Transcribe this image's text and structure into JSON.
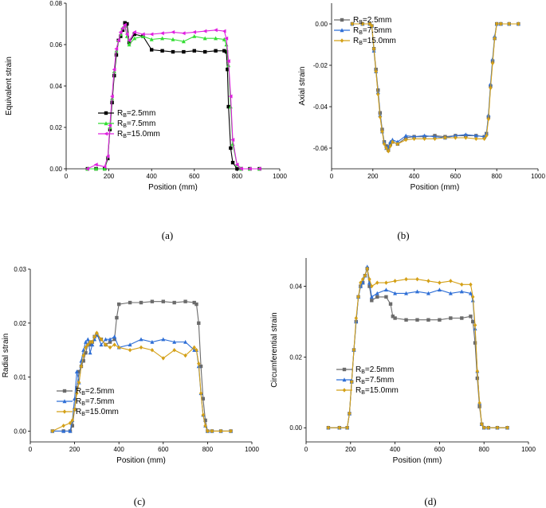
{
  "chart_data": [
    {
      "id": "a",
      "type": "line",
      "caption": "(a)",
      "xlabel": "Position (mm)",
      "ylabel": "Equivalent strain",
      "xlim": [
        0,
        1000
      ],
      "ylim": [
        0,
        0.08
      ],
      "xticks": [
        "0",
        "200",
        "400",
        "600",
        "800",
        "1000"
      ],
      "yticks": [
        "0.00",
        "0.02",
        "0.04",
        "0.06",
        "0.08"
      ],
      "legend_position": "middle-left",
      "series": [
        {
          "name_base": "R",
          "name_sub": "B",
          "name_rest": "=2.5mm",
          "color": "#000000",
          "marker": "square",
          "x": [
            100,
            140,
            180,
            195,
            205,
            215,
            225,
            235,
            245,
            255,
            265,
            275,
            285,
            295,
            320,
            360,
            400,
            450,
            500,
            550,
            600,
            650,
            700,
            740,
            750,
            755,
            760,
            770,
            780,
            800,
            820,
            860,
            905
          ],
          "y": [
            0,
            0,
            0,
            0.005,
            0.019,
            0.032,
            0.045,
            0.055,
            0.062,
            0.064,
            0.067,
            0.0705,
            0.07,
            0.061,
            0.065,
            0.064,
            0.0575,
            0.057,
            0.0565,
            0.0565,
            0.057,
            0.0565,
            0.057,
            0.057,
            0.0565,
            0.048,
            0.03,
            0.01,
            0.003,
            0,
            0,
            0,
            0
          ]
        },
        {
          "name_base": "R",
          "name_sub": "B",
          "name_rest": "=7.5mm",
          "color": "#33dd33",
          "marker": "triangle-up",
          "x": [
            100,
            140,
            180,
            195,
            205,
            215,
            225,
            235,
            245,
            255,
            265,
            275,
            285,
            295,
            320,
            360,
            400,
            450,
            500,
            550,
            600,
            650,
            700,
            740,
            750,
            760,
            770,
            780,
            800,
            820,
            860,
            905
          ],
          "y": [
            0,
            0,
            0,
            0.006,
            0.02,
            0.034,
            0.047,
            0.057,
            0.062,
            0.065,
            0.068,
            0.069,
            0.064,
            0.06,
            0.063,
            0.064,
            0.0625,
            0.063,
            0.0625,
            0.0615,
            0.064,
            0.063,
            0.063,
            0.0625,
            0.06,
            0.05,
            0.03,
            0.012,
            0.002,
            0,
            0,
            0
          ]
        },
        {
          "name_base": "R",
          "name_sub": "B",
          "name_rest": "=15.0mm",
          "color": "#e020e0",
          "marker": "triangle-left",
          "x": [
            100,
            140,
            180,
            195,
            205,
            215,
            225,
            235,
            245,
            255,
            265,
            275,
            285,
            295,
            320,
            360,
            400,
            450,
            500,
            550,
            600,
            650,
            700,
            740,
            750,
            760,
            770,
            780,
            800,
            820,
            860,
            905
          ],
          "y": [
            0,
            0.002,
            0.001,
            0.006,
            0.021,
            0.035,
            0.048,
            0.058,
            0.062,
            0.066,
            0.068,
            0.0695,
            0.065,
            0.062,
            0.066,
            0.065,
            0.065,
            0.0655,
            0.066,
            0.0655,
            0.066,
            0.0665,
            0.067,
            0.0665,
            0.063,
            0.052,
            0.035,
            0.014,
            0.002,
            0,
            0,
            0
          ]
        }
      ]
    },
    {
      "id": "b",
      "type": "line",
      "caption": "(b)",
      "xlabel": "Position (mm)",
      "ylabel": "Axial strain",
      "xlim": [
        0,
        1000
      ],
      "ylim": [
        -0.07,
        0.01
      ],
      "xticks": [
        "0",
        "200",
        "400",
        "600",
        "800",
        "1000"
      ],
      "yticks": [
        "0.00",
        "-0.02",
        "-0.04",
        "-0.06"
      ],
      "legend_position": "top-left",
      "series": [
        {
          "name_base": "R",
          "name_sub": "B",
          "name_rest": "=2.5mm",
          "color": "#6b6b6b",
          "marker": "square",
          "x": [
            100,
            150,
            185,
            195,
            205,
            215,
            225,
            235,
            245,
            255,
            265,
            275,
            285,
            295,
            320,
            360,
            400,
            450,
            500,
            550,
            600,
            650,
            700,
            740,
            750,
            760,
            770,
            780,
            790,
            800,
            820,
            860,
            905
          ],
          "y": [
            0,
            0,
            0,
            -0.001,
            -0.012,
            -0.022,
            -0.032,
            -0.043,
            -0.051,
            -0.057,
            -0.059,
            -0.061,
            -0.058,
            -0.057,
            -0.058,
            -0.055,
            -0.0545,
            -0.0545,
            -0.054,
            -0.0545,
            -0.054,
            -0.054,
            -0.054,
            -0.0545,
            -0.053,
            -0.045,
            -0.03,
            -0.018,
            -0.007,
            0,
            0,
            0,
            0
          ]
        },
        {
          "name_base": "R",
          "name_sub": "B",
          "name_rest": "=7.5mm",
          "color": "#2f6fd6",
          "marker": "triangle-up",
          "x": [
            100,
            150,
            185,
            195,
            205,
            215,
            225,
            235,
            245,
            255,
            265,
            275,
            285,
            295,
            320,
            360,
            400,
            450,
            500,
            550,
            600,
            650,
            700,
            740,
            750,
            760,
            770,
            780,
            790,
            800,
            820,
            860,
            905
          ],
          "y": [
            0,
            0,
            0,
            -0.001,
            -0.013,
            -0.023,
            -0.033,
            -0.044,
            -0.052,
            -0.057,
            -0.06,
            -0.0595,
            -0.057,
            -0.056,
            -0.057,
            -0.054,
            -0.0545,
            -0.054,
            -0.0545,
            -0.055,
            -0.054,
            -0.0535,
            -0.054,
            -0.0545,
            -0.053,
            -0.044,
            -0.029,
            -0.017,
            -0.006,
            0,
            0,
            0,
            0
          ]
        },
        {
          "name_base": "R",
          "name_sub": "B",
          "name_rest": "=15.0mm",
          "color": "#d4a017",
          "marker": "diamond",
          "x": [
            100,
            150,
            185,
            195,
            205,
            215,
            225,
            235,
            245,
            255,
            265,
            275,
            285,
            295,
            320,
            360,
            400,
            450,
            500,
            550,
            600,
            650,
            700,
            740,
            750,
            760,
            770,
            780,
            790,
            800,
            820,
            860,
            905
          ],
          "y": [
            0,
            0,
            0,
            -0.001,
            -0.012,
            -0.023,
            -0.034,
            -0.045,
            -0.052,
            -0.058,
            -0.06,
            -0.0615,
            -0.059,
            -0.057,
            -0.058,
            -0.056,
            -0.0555,
            -0.0555,
            -0.0555,
            -0.055,
            -0.055,
            -0.055,
            -0.0555,
            -0.0555,
            -0.054,
            -0.046,
            -0.031,
            -0.019,
            -0.007,
            0,
            0,
            0,
            0
          ]
        }
      ]
    },
    {
      "id": "c",
      "type": "line",
      "caption": "(c)",
      "xlabel": "Position (mm)",
      "ylabel": "Radial strain",
      "xlim": [
        0,
        1000
      ],
      "ylim": [
        -0.002,
        0.03
      ],
      "xticks": [
        "0",
        "200",
        "400",
        "600",
        "800",
        "1000"
      ],
      "yticks": [
        "0.00",
        "0.01",
        "0.02",
        "0.03"
      ],
      "legend_position": "bottom-left",
      "series": [
        {
          "name_base": "R",
          "name_sub": "B",
          "name_rest": "=2.5mm",
          "color": "#6b6b6b",
          "marker": "square",
          "x": [
            100,
            150,
            180,
            190,
            200,
            210,
            220,
            230,
            240,
            250,
            260,
            270,
            280,
            290,
            300,
            320,
            340,
            360,
            380,
            390,
            400,
            450,
            500,
            550,
            600,
            650,
            700,
            740,
            750,
            760,
            770,
            780,
            790,
            800,
            820,
            860,
            905
          ],
          "y": [
            0,
            0,
            0,
            0.001,
            0.004,
            0.008,
            0.011,
            0.012,
            0.013,
            0.0145,
            0.016,
            0.016,
            0.0165,
            0.0175,
            0.0178,
            0.017,
            0.016,
            0.0165,
            0.017,
            0.021,
            0.0235,
            0.0238,
            0.0238,
            0.024,
            0.024,
            0.0238,
            0.024,
            0.0238,
            0.0235,
            0.02,
            0.012,
            0.006,
            0.002,
            0,
            0,
            0,
            0
          ]
        },
        {
          "name_base": "R",
          "name_sub": "B",
          "name_rest": "=7.5mm",
          "color": "#2f6fd6",
          "marker": "triangle-up",
          "x": [
            100,
            150,
            180,
            190,
            200,
            210,
            220,
            230,
            240,
            250,
            260,
            270,
            280,
            290,
            300,
            320,
            340,
            360,
            380,
            400,
            450,
            500,
            550,
            600,
            650,
            700,
            740,
            750,
            760,
            770,
            780,
            790,
            800,
            820,
            860,
            905
          ],
          "y": [
            0,
            0,
            0,
            0.002,
            0.006,
            0.011,
            0.009,
            0.013,
            0.015,
            0.0165,
            0.017,
            0.0145,
            0.016,
            0.017,
            0.018,
            0.016,
            0.017,
            0.017,
            0.0175,
            0.0155,
            0.016,
            0.017,
            0.0165,
            0.017,
            0.0165,
            0.0165,
            0.015,
            0.015,
            0.012,
            0.007,
            0.003,
            0.001,
            0,
            0,
            0,
            0
          ]
        },
        {
          "name_base": "R",
          "name_sub": "B",
          "name_rest": "=15.0mm",
          "color": "#d4a017",
          "marker": "diamond",
          "x": [
            100,
            150,
            180,
            190,
            200,
            210,
            220,
            230,
            240,
            250,
            260,
            270,
            280,
            290,
            300,
            320,
            340,
            360,
            380,
            400,
            450,
            500,
            550,
            600,
            650,
            700,
            740,
            750,
            760,
            770,
            780,
            790,
            800,
            820,
            860,
            905
          ],
          "y": [
            0,
            0.001,
            0.0015,
            0.002,
            0.004,
            0.007,
            0.009,
            0.012,
            0.014,
            0.0155,
            0.016,
            0.0165,
            0.0165,
            0.0175,
            0.0182,
            0.017,
            0.016,
            0.0155,
            0.016,
            0.0155,
            0.015,
            0.0155,
            0.015,
            0.0135,
            0.015,
            0.014,
            0.0155,
            0.015,
            0.0125,
            0.007,
            0.003,
            0.001,
            0,
            0,
            0,
            0
          ]
        }
      ]
    },
    {
      "id": "d",
      "type": "line",
      "caption": "(d)",
      "xlabel": "Position (mm)",
      "ylabel": "Circumferential strain",
      "xlim": [
        0,
        1000
      ],
      "ylim": [
        -0.004,
        0.048
      ],
      "xticks": [
        "0",
        "200",
        "400",
        "600",
        "800",
        "1000"
      ],
      "yticks": [
        "0.00",
        "0.02",
        "0.04"
      ],
      "legend_position": "bottom-left",
      "series": [
        {
          "name_base": "R",
          "name_sub": "B",
          "name_rest": "=2.5mm",
          "color": "#6b6b6b",
          "marker": "square",
          "x": [
            100,
            150,
            185,
            195,
            205,
            215,
            225,
            235,
            245,
            255,
            265,
            275,
            285,
            295,
            320,
            360,
            380,
            390,
            400,
            450,
            500,
            550,
            600,
            650,
            700,
            740,
            750,
            760,
            770,
            780,
            790,
            800,
            820,
            860,
            905
          ],
          "y": [
            0,
            0,
            0,
            0.004,
            0.013,
            0.022,
            0.03,
            0.037,
            0.04,
            0.041,
            0.043,
            0.045,
            0.04,
            0.036,
            0.037,
            0.037,
            0.035,
            0.0315,
            0.031,
            0.0305,
            0.0305,
            0.0305,
            0.0305,
            0.031,
            0.031,
            0.0315,
            0.03,
            0.024,
            0.014,
            0.006,
            0.001,
            0,
            0,
            0,
            0
          ]
        },
        {
          "name_base": "R",
          "name_sub": "B",
          "name_rest": "=7.5mm",
          "color": "#2f6fd6",
          "marker": "triangle-up",
          "x": [
            100,
            150,
            185,
            195,
            205,
            215,
            225,
            235,
            245,
            255,
            265,
            275,
            285,
            295,
            320,
            360,
            400,
            450,
            500,
            550,
            600,
            650,
            700,
            740,
            750,
            760,
            770,
            780,
            790,
            800,
            820,
            860,
            905
          ],
          "y": [
            0,
            0,
            0,
            0.004,
            0.013,
            0.022,
            0.03,
            0.037,
            0.04,
            0.041,
            0.043,
            0.0455,
            0.041,
            0.037,
            0.038,
            0.039,
            0.038,
            0.038,
            0.0385,
            0.038,
            0.039,
            0.038,
            0.0385,
            0.038,
            0.036,
            0.028,
            0.016,
            0.007,
            0.001,
            0,
            0,
            0,
            0
          ]
        },
        {
          "name_base": "R",
          "name_sub": "B",
          "name_rest": "=15.0mm",
          "color": "#d4a017",
          "marker": "diamond",
          "x": [
            100,
            150,
            185,
            195,
            205,
            215,
            225,
            235,
            245,
            255,
            265,
            275,
            285,
            295,
            320,
            360,
            400,
            450,
            500,
            550,
            600,
            650,
            700,
            740,
            750,
            760,
            770,
            780,
            790,
            800,
            820,
            860,
            905
          ],
          "y": [
            0,
            0,
            0,
            0.004,
            0.013,
            0.022,
            0.031,
            0.037,
            0.041,
            0.042,
            0.043,
            0.045,
            0.042,
            0.04,
            0.041,
            0.041,
            0.0415,
            0.042,
            0.042,
            0.0415,
            0.041,
            0.0415,
            0.0405,
            0.0405,
            0.037,
            0.029,
            0.016,
            0.007,
            0.001,
            0,
            0,
            0,
            0
          ]
        }
      ]
    }
  ]
}
